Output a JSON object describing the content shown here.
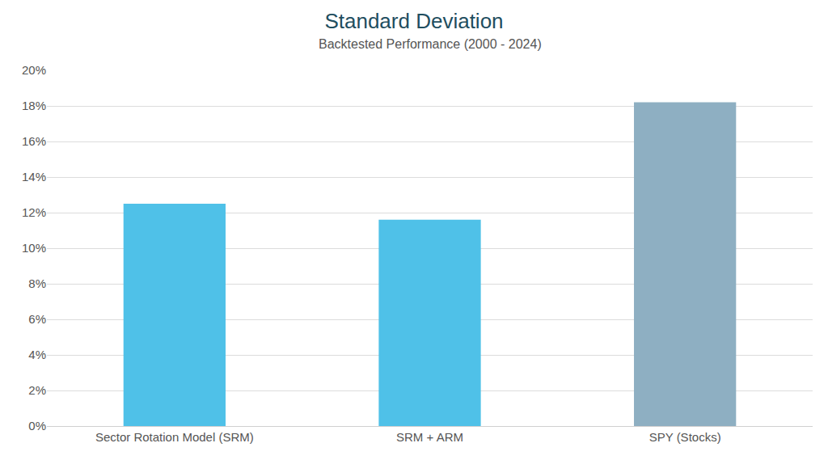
{
  "chart_data": {
    "type": "bar",
    "title": "Standard Deviation",
    "subtitle": "Backtested Performance (2000 - 2024)",
    "categories": [
      "Sector Rotation Model (SRM)",
      "SRM + ARM",
      "SPY (Stocks)"
    ],
    "values": [
      12.5,
      11.6,
      18.2
    ],
    "colors": [
      "#4fc1e8",
      "#4fc1e8",
      "#8eafc2"
    ],
    "ylim": [
      0,
      20
    ],
    "yticks": [
      {
        "value": 0,
        "label": "0%"
      },
      {
        "value": 2,
        "label": "2%"
      },
      {
        "value": 4,
        "label": "4%"
      },
      {
        "value": 6,
        "label": "6%"
      },
      {
        "value": 8,
        "label": "8%"
      },
      {
        "value": 10,
        "label": "10%"
      },
      {
        "value": 12,
        "label": "12%"
      },
      {
        "value": 14,
        "label": "14%"
      },
      {
        "value": 16,
        "label": "16%"
      },
      {
        "value": 18,
        "label": "18%"
      },
      {
        "value": 20,
        "label": "20%"
      }
    ],
    "grid": true
  }
}
